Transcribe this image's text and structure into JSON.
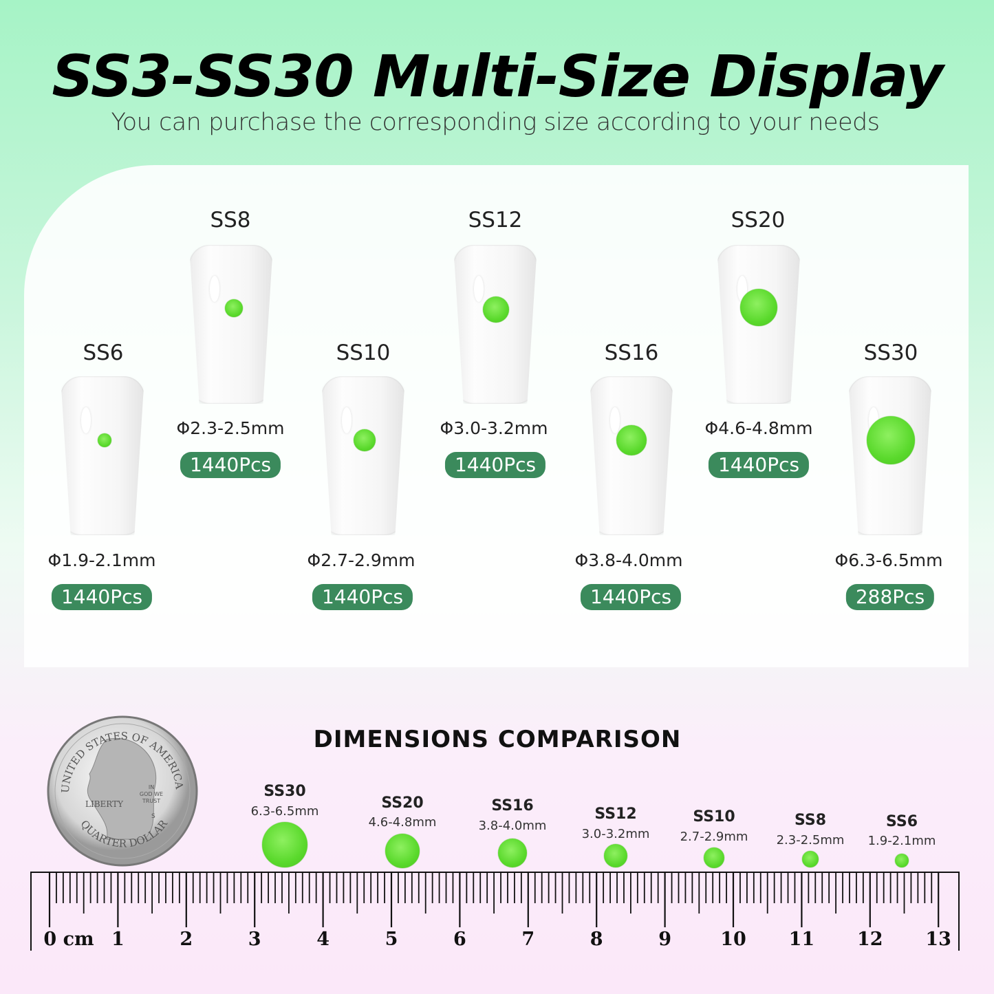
{
  "header": {
    "title": "SS3-SS30 Multi-Size Display",
    "subtitle": "You can purchase the corresponding size according to your needs"
  },
  "colors": {
    "badge": "#3b8a5c",
    "gem": "#5ad92c",
    "top_bg": "#a6f3c6",
    "bottom_bg": "#fbe8f9"
  },
  "sizes": [
    {
      "name": "SS6",
      "dim": "Φ1.9-2.1mm",
      "qty": "1440Pcs"
    },
    {
      "name": "SS8",
      "dim": "Φ2.3-2.5mm",
      "qty": "1440Pcs"
    },
    {
      "name": "SS10",
      "dim": "Φ2.7-2.9mm",
      "qty": "1440Pcs"
    },
    {
      "name": "SS12",
      "dim": "Φ3.0-3.2mm",
      "qty": "1440Pcs"
    },
    {
      "name": "SS16",
      "dim": "Φ3.8-4.0mm",
      "qty": "1440Pcs"
    },
    {
      "name": "SS20",
      "dim": "Φ4.6-4.8mm",
      "qty": "1440Pcs"
    },
    {
      "name": "SS30",
      "dim": "Φ6.3-6.5mm",
      "qty": "288Pcs"
    }
  ],
  "comparison": {
    "title": "DIMENSIONS COMPARISON",
    "items": [
      {
        "name": "SS30",
        "dim": "6.3-6.5mm"
      },
      {
        "name": "SS20",
        "dim": "4.6-4.8mm"
      },
      {
        "name": "SS16",
        "dim": "3.8-4.0mm"
      },
      {
        "name": "SS12",
        "dim": "3.0-3.2mm"
      },
      {
        "name": "SS10",
        "dim": "2.7-2.9mm"
      },
      {
        "name": "SS8",
        "dim": "2.3-2.5mm"
      },
      {
        "name": "SS6",
        "dim": "1.9-2.1mm"
      }
    ]
  },
  "coin": {
    "top": "UNITED STATES OF AMERICA",
    "bottom": "QUARTER DOLLAR",
    "left": "LIBERTY",
    "motto": "IN GOD WE TRUST",
    "mint": "S"
  },
  "ruler": {
    "labels": [
      "0 cm",
      "1",
      "2",
      "3",
      "4",
      "5",
      "6",
      "7",
      "8",
      "9",
      "10",
      "11",
      "12",
      "13"
    ]
  }
}
